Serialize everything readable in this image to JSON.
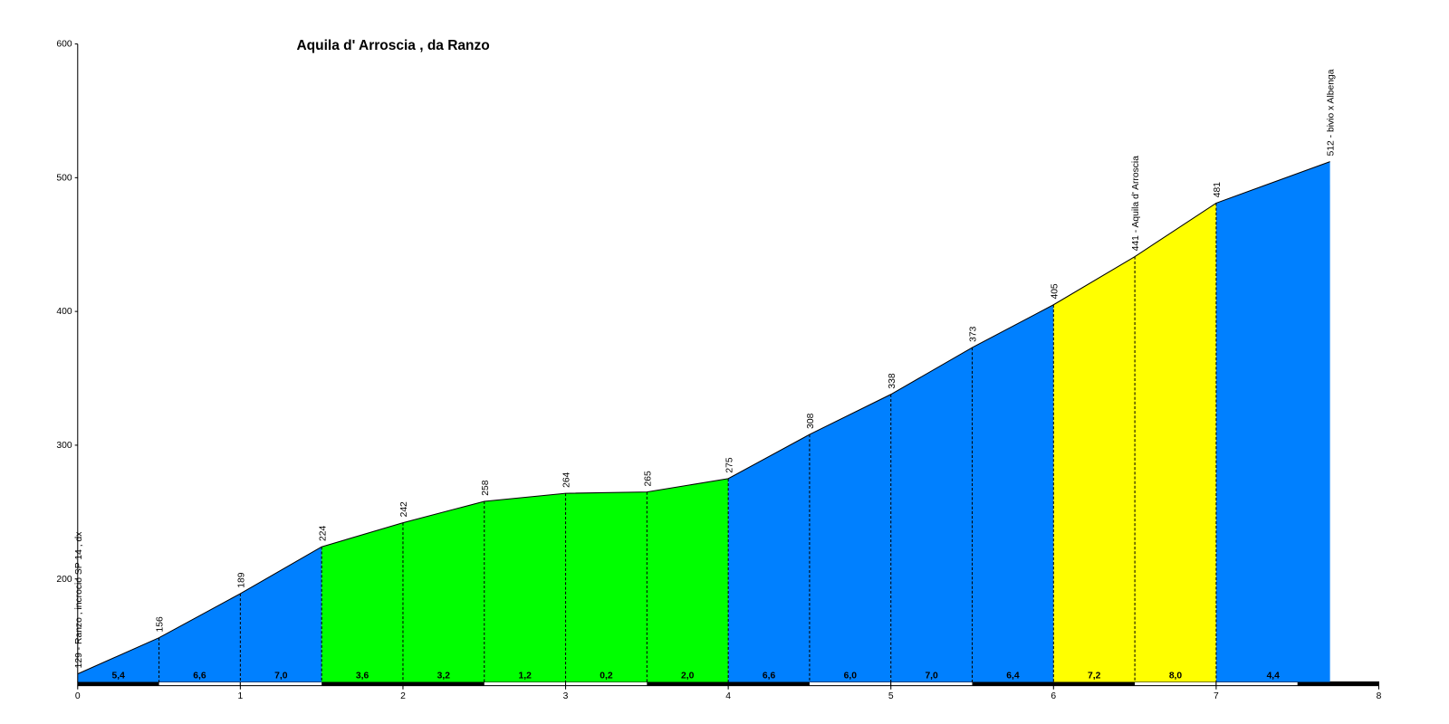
{
  "chart_data": {
    "type": "area",
    "title": "Aquila d' Arroscia , da Ranzo",
    "x": [
      0,
      0.5,
      1,
      1.5,
      2,
      2.5,
      3,
      3.5,
      4,
      4.5,
      5,
      5.5,
      6,
      6.5,
      7,
      7.7
    ],
    "elevations": [
      129,
      156,
      189,
      224,
      242,
      258,
      264,
      265,
      275,
      308,
      338,
      373,
      405,
      441,
      481,
      512
    ],
    "elevation_labels": [
      "129 - Ranzo , incrocio SP 14 , dx",
      "156",
      "189",
      "224",
      "242",
      "258",
      "264",
      "265",
      "275",
      "308",
      "338",
      "373",
      "405",
      "441 - Aquila d' Arroscia",
      "481",
      "512 - bivio x Albenga"
    ],
    "gradients": [
      5.4,
      6.6,
      7.0,
      3.6,
      3.2,
      1.2,
      0.2,
      2.0,
      6.6,
      6.0,
      7.0,
      6.4,
      7.2,
      8.0,
      4.4
    ],
    "gradient_labels": [
      "5,4",
      "6,6",
      "7,0",
      "3,6",
      "3,2",
      "1,2",
      "0,2",
      "2,0",
      "6,6",
      "6,0",
      "7,0",
      "6,4",
      "7,2",
      "8,0",
      "4,4"
    ],
    "segment_colors": [
      "#0080ff",
      "#0080ff",
      "#0080ff",
      "#00ff00",
      "#00ff00",
      "#00ff00",
      "#00ff00",
      "#00ff00",
      "#0080ff",
      "#0080ff",
      "#0080ff",
      "#0080ff",
      "#ffff00",
      "#ffff00",
      "#0080ff"
    ],
    "xlim": [
      0,
      8
    ],
    "xticks": [
      0,
      1,
      2,
      3,
      4,
      5,
      6,
      7,
      8
    ],
    "ylim": [
      123,
      600
    ],
    "yticks": [
      200,
      300,
      400,
      500,
      600
    ]
  }
}
